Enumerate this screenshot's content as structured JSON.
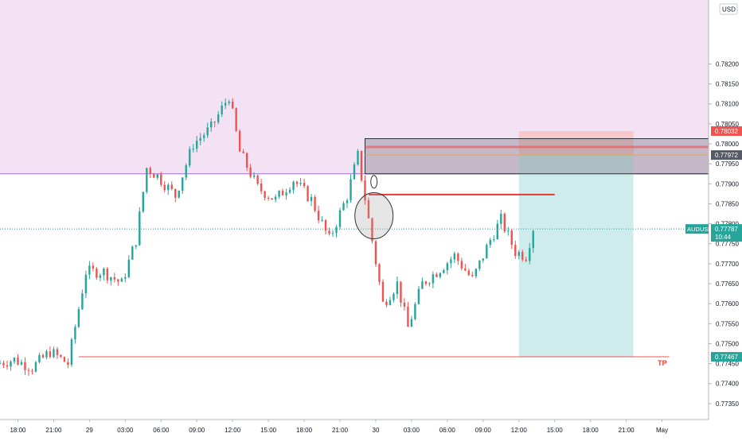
{
  "chart_data": {
    "type": "candlestick",
    "symbol": "AUDUSD",
    "currency": "USD",
    "yticks": [
      "0.78200",
      "0.78150",
      "0.78100",
      "0.78050",
      "0.78000",
      "0.77950",
      "0.77900",
      "0.77850",
      "0.77800",
      "0.77750",
      "0.77700",
      "0.77650",
      "0.77600",
      "0.77550",
      "0.77500",
      "0.77450",
      "0.77400",
      "0.77350"
    ],
    "ytick_values": [
      0.782,
      0.7815,
      0.781,
      0.7805,
      0.78,
      0.7795,
      0.779,
      0.7785,
      0.778,
      0.7775,
      0.777,
      0.7765,
      0.776,
      0.7755,
      0.775,
      0.7745,
      0.774,
      0.7735
    ],
    "ylim": [
      0.7731,
      0.7836
    ],
    "xticks": [
      "18:00",
      "21:00",
      "29",
      "03:00",
      "06:00",
      "09:00",
      "12:00",
      "15:00",
      "18:00",
      "21:00",
      "30",
      "03:00",
      "06:00",
      "09:00",
      "12:00",
      "15:00",
      "18:00",
      "21:00",
      "May"
    ],
    "xlim": [
      -0.5,
      19.3
    ],
    "price_labels": {
      "stop": {
        "text": "0.78032",
        "value": 0.78032,
        "color": "#ef5350"
      },
      "entry": {
        "text": "0.77972",
        "value": 0.77972,
        "color": "#555a66"
      },
      "current": {
        "text": "0.77787",
        "time": "10:44",
        "value": 0.77787,
        "color": "#26a69a"
      },
      "target": {
        "text": "0.77467",
        "value": 0.77467,
        "color": "#26a69a"
      },
      "symbol_tag": "AUDUSD"
    },
    "annotations": {
      "tp_label": "TP",
      "tp_level": 0.77467,
      "resistance_level": 0.77873,
      "supply_zone": [
        0.77925,
        0.78013
      ],
      "upper_zone_bottom": 0.77925,
      "position": {
        "x_start": 14.0,
        "x_end": 17.2,
        "stop": 0.78032,
        "entry": 0.77972,
        "target": 0.77467
      }
    },
    "candles_approx": [
      {
        "x": -0.5,
        "c": 0.7745
      },
      {
        "x": 0.0,
        "c": 0.7746
      },
      {
        "x": 0.5,
        "c": 0.7744
      },
      {
        "x": 1.0,
        "c": 0.7748
      },
      {
        "x": 1.5,
        "c": 0.7745
      },
      {
        "x": 2.0,
        "c": 0.7768
      },
      {
        "x": 2.5,
        "c": 0.7768
      },
      {
        "x": 3.0,
        "c": 0.7765
      },
      {
        "x": 3.4,
        "c": 0.7776
      },
      {
        "x": 3.7,
        "c": 0.7794
      },
      {
        "x": 4.0,
        "c": 0.7792
      },
      {
        "x": 4.5,
        "c": 0.7787
      },
      {
        "x": 5.0,
        "c": 0.78
      },
      {
        "x": 5.5,
        "c": 0.7804
      },
      {
        "x": 6.0,
        "c": 0.7812
      },
      {
        "x": 6.3,
        "c": 0.7798
      },
      {
        "x": 6.8,
        "c": 0.7789
      },
      {
        "x": 7.3,
        "c": 0.7786
      },
      {
        "x": 7.8,
        "c": 0.7791
      },
      {
        "x": 8.3,
        "c": 0.7786
      },
      {
        "x": 8.8,
        "c": 0.7776
      },
      {
        "x": 9.3,
        "c": 0.7787
      },
      {
        "x": 9.6,
        "c": 0.7797
      },
      {
        "x": 9.9,
        "c": 0.7781
      },
      {
        "x": 10.3,
        "c": 0.776
      },
      {
        "x": 10.7,
        "c": 0.7765
      },
      {
        "x": 11.0,
        "c": 0.7754
      },
      {
        "x": 11.4,
        "c": 0.7765
      },
      {
        "x": 11.8,
        "c": 0.7768
      },
      {
        "x": 12.3,
        "c": 0.7772
      },
      {
        "x": 12.8,
        "c": 0.7766
      },
      {
        "x": 13.3,
        "c": 0.7776
      },
      {
        "x": 13.6,
        "c": 0.7781
      },
      {
        "x": 14.0,
        "c": 0.7773
      },
      {
        "x": 14.3,
        "c": 0.7772
      },
      {
        "x": 14.5,
        "c": 0.7779
      }
    ],
    "colors": {
      "up": "#26a69a",
      "down": "#ef5350"
    },
    "grid": false
  }
}
